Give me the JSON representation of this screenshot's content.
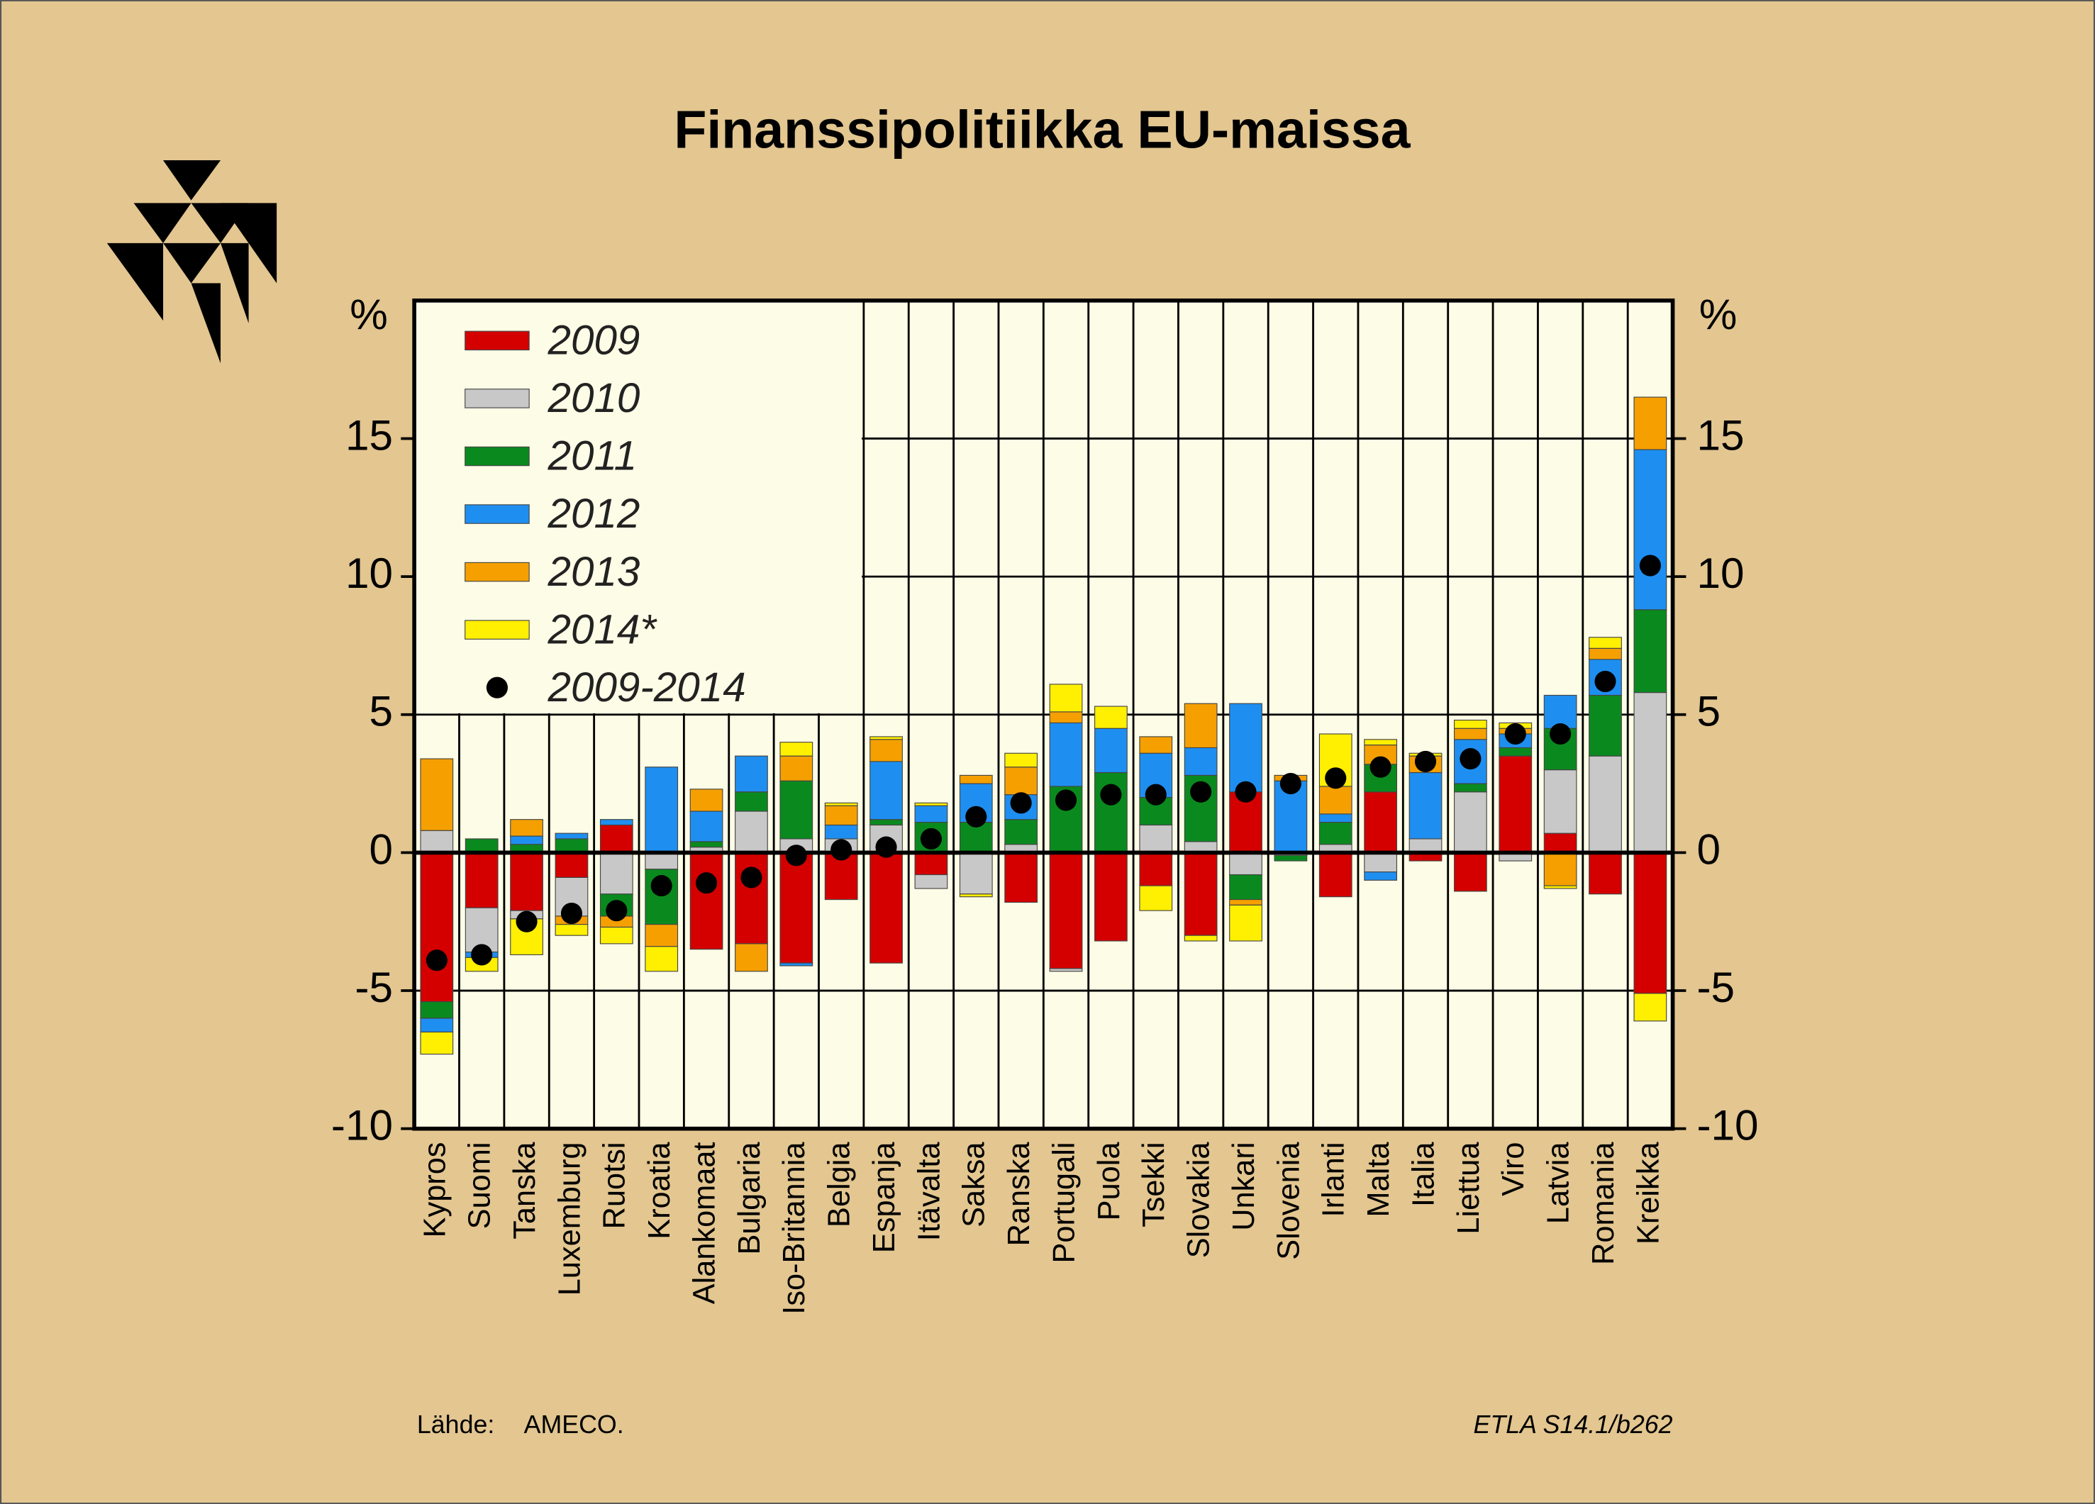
{
  "chart_data": {
    "type": "bar",
    "stacked": true,
    "title": "Finanssipolitiikka EU-maissa",
    "y_label": "%",
    "source_label": "Lähde:",
    "source": "AMECO.",
    "code": "ETLA S14.1/b262",
    "categories": [
      "Kypros",
      "Suomi",
      "Tanska",
      "Luxemburg",
      "Ruotsi",
      "Kroatia",
      "Alankomaat",
      "Bulgaria",
      "Iso-Britannia",
      "Belgia",
      "Espanja",
      "Itävalta",
      "Saksa",
      "Ranska",
      "Portugali",
      "Puola",
      "Tsekki",
      "Slovakia",
      "Unkari",
      "Slovenia",
      "Irlanti",
      "Malta",
      "Italia",
      "Liettua",
      "Viro",
      "Latvia",
      "Romania",
      "Kreikka"
    ],
    "series": [
      {
        "name": "2009",
        "color": "#d40000",
        "values": [
          -5.4,
          -2.0,
          -2.1,
          -0.9,
          1.0,
          0,
          -3.5,
          -3.3,
          -4.0,
          -1.7,
          -4.0,
          -0.8,
          0,
          -1.8,
          -4.2,
          -3.2,
          -1.2,
          -3.0,
          2.2,
          0,
          -1.6,
          2.2,
          -0.3,
          -1.4,
          3.5,
          0.7,
          -1.5,
          -5.1
        ]
      },
      {
        "name": "2010",
        "color": "#c8c8c8",
        "values": [
          0.8,
          -1.6,
          -0.3,
          -1.4,
          -1.5,
          -0.6,
          0.2,
          1.5,
          0.5,
          0.5,
          1.0,
          -0.5,
          -1.5,
          0.3,
          -0.1,
          0,
          1.0,
          0.4,
          -0.8,
          -0.1,
          0.3,
          -0.7,
          0.5,
          2.2,
          -0.3,
          2.3,
          3.5,
          5.8
        ]
      },
      {
        "name": "2011",
        "color": "#0a8a1e",
        "values": [
          -0.6,
          0.5,
          0.3,
          0.5,
          -0.8,
          -2.0,
          0.2,
          0.7,
          2.1,
          0,
          0.2,
          1.1,
          1.1,
          0.9,
          2.4,
          2.9,
          1.0,
          2.4,
          -0.9,
          -0.2,
          0.8,
          1.0,
          0,
          0.3,
          0.3,
          1.5,
          2.2,
          3.0
        ]
      },
      {
        "name": "2012",
        "color": "#1e8ff0",
        "values": [
          -0.5,
          -0.2,
          0.3,
          0.2,
          0.2,
          3.1,
          1.1,
          1.3,
          -0.1,
          0.5,
          2.1,
          0.6,
          1.4,
          0.9,
          2.3,
          1.6,
          1.6,
          1.0,
          3.2,
          2.6,
          0.3,
          -0.3,
          2.4,
          1.6,
          0.5,
          1.2,
          1.3,
          5.8
        ]
      },
      {
        "name": "2013",
        "color": "#f5a000",
        "values": [
          2.6,
          0,
          0.6,
          -0.3,
          -0.4,
          -0.8,
          0.8,
          -1.0,
          0.9,
          0.7,
          0.8,
          0,
          0.3,
          1.0,
          0.4,
          0,
          0.6,
          1.6,
          -0.2,
          0.2,
          1.0,
          0.7,
          0.6,
          0.4,
          0.2,
          -1.2,
          0.4,
          1.9
        ]
      },
      {
        "name": "2014*",
        "color": "#ffef00",
        "values": [
          -0.8,
          -0.5,
          -1.3,
          -0.4,
          -0.6,
          -0.9,
          0,
          0,
          0.5,
          0.1,
          0.1,
          0.1,
          -0.1,
          0.5,
          1.0,
          0.8,
          -0.9,
          -0.2,
          -1.3,
          0,
          1.9,
          0.2,
          0.1,
          0.3,
          0.2,
          -0.1,
          0.4,
          -1.0
        ]
      }
    ],
    "total": {
      "name": "2009-2014",
      "color": "#000000",
      "values": [
        -3.9,
        -3.7,
        -2.5,
        -2.2,
        -2.1,
        -1.2,
        -1.1,
        -0.9,
        -0.1,
        0.1,
        0.2,
        0.5,
        1.3,
        1.8,
        1.9,
        2.1,
        2.1,
        2.2,
        2.2,
        2.5,
        2.7,
        3.1,
        3.3,
        3.4,
        4.3,
        4.3,
        6.2,
        10.4
      ]
    },
    "ylim": [
      -10,
      20
    ],
    "yticks": [
      -10,
      -5,
      0,
      5,
      10,
      15
    ],
    "grid": true
  }
}
